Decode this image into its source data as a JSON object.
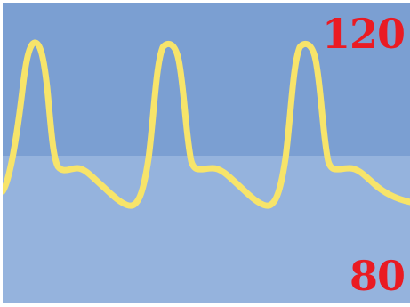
{
  "monitor": {
    "scale": {
      "high_label": "120",
      "low_label": "80"
    },
    "colors": {
      "upper_band": "#7b9fd2",
      "lower_band": "#95b3dd",
      "trace": "#f7e46a",
      "scale_label": "#ea1b23"
    },
    "trace": {
      "type": "arterial-pressure-waveform",
      "beats_visible": 3
    }
  }
}
